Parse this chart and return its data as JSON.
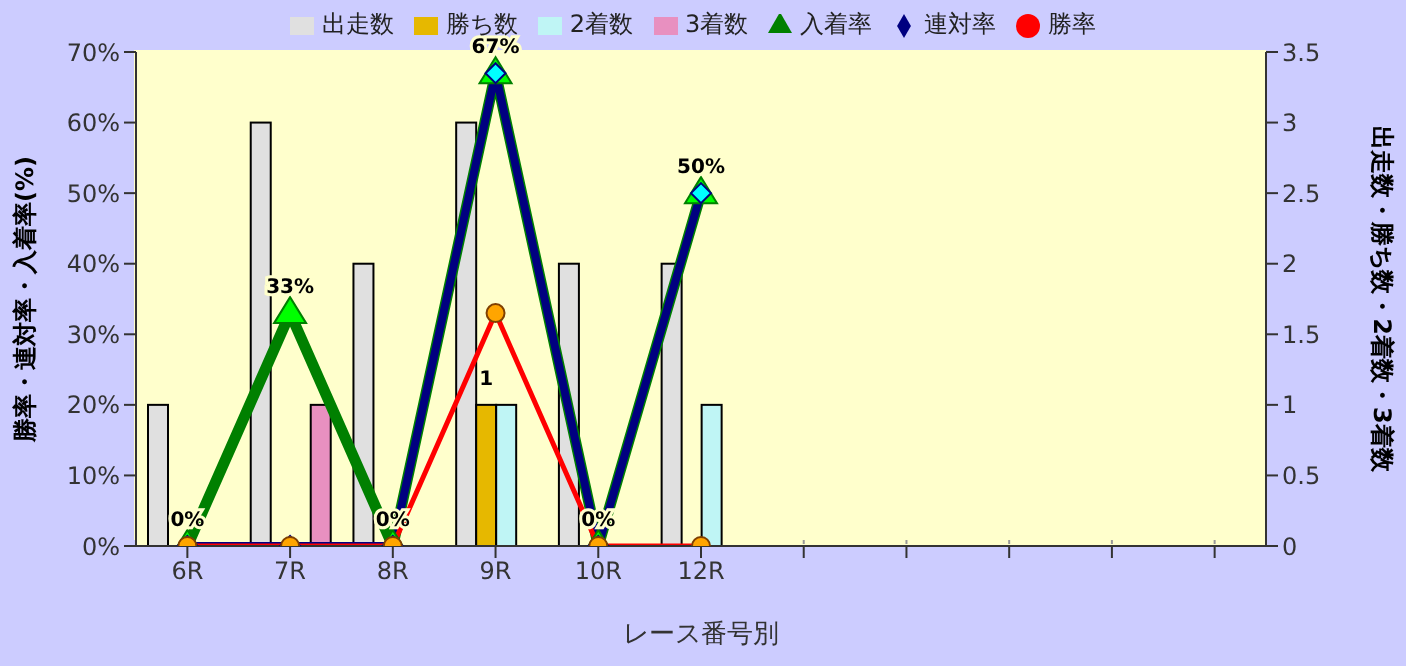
{
  "chart_data": {
    "type": "bar",
    "categories": [
      "6R",
      "7R",
      "8R",
      "9R",
      "10R",
      "12R",
      null,
      null,
      null,
      null,
      null
    ],
    "xlabel": "レース番号別",
    "ylabel": "勝率・連対率・入着率(%)",
    "y2label": "出走数・勝ち数・2着数・3着数",
    "ylim": [
      0,
      70
    ],
    "yticks": [
      {
        "value": 0,
        "label": "0%"
      },
      {
        "value": 10,
        "label": "10%"
      },
      {
        "value": 20,
        "label": "20%"
      },
      {
        "value": 30,
        "label": "30%"
      },
      {
        "value": 40,
        "label": "40%"
      },
      {
        "value": 50,
        "label": "50%"
      },
      {
        "value": 60,
        "label": "60%"
      },
      {
        "value": 70,
        "label": "70%"
      }
    ],
    "y2lim": [
      0,
      3.5
    ],
    "y2ticks": [
      0,
      0.5,
      1,
      1.5,
      2,
      2.5,
      3,
      3.5
    ],
    "grid": true,
    "legend": "top",
    "series": [
      {
        "name": "出走数",
        "axis": "y2",
        "color": "#e0e0e0",
        "values": [
          1,
          3,
          2,
          3,
          2,
          2,
          null,
          null,
          null,
          null,
          null
        ]
      },
      {
        "name": "勝ち数",
        "axis": "y2",
        "color": "#e6b800",
        "values": [
          0,
          0,
          0,
          1,
          0,
          0,
          null,
          null,
          null,
          null,
          null
        ],
        "value_labels": [
          null,
          null,
          null,
          "1",
          null,
          null,
          null,
          null,
          null,
          null,
          null
        ]
      },
      {
        "name": "2着数",
        "axis": "y2",
        "color": "#bff5f5",
        "values": [
          0,
          0,
          0,
          1,
          0,
          1,
          null,
          null,
          null,
          null,
          null
        ]
      },
      {
        "name": "3着数",
        "axis": "y2",
        "color": "#e890c0",
        "values": [
          0,
          1,
          0,
          0,
          0,
          0,
          null,
          null,
          null,
          null,
          null
        ]
      },
      {
        "name": "入着率",
        "type": "line",
        "color": "#008000",
        "marker": "triangle",
        "values": [
          0,
          33,
          0,
          67,
          0,
          50,
          null,
          null,
          null,
          null,
          null
        ],
        "value_labels": [
          "0%",
          "33%",
          "0%",
          "67%",
          "0%",
          "50%",
          null,
          null,
          null,
          null,
          null
        ]
      },
      {
        "name": "連対率",
        "type": "line",
        "color": "#000080",
        "marker": "diamond",
        "values": [
          0,
          0,
          0,
          67,
          0,
          50,
          null,
          null,
          null,
          null,
          null
        ]
      },
      {
        "name": "勝率",
        "type": "line",
        "color": "#ff0000",
        "marker": "circle",
        "values": [
          0,
          0,
          0,
          33,
          0,
          0,
          null,
          null,
          null,
          null,
          null
        ]
      }
    ]
  }
}
